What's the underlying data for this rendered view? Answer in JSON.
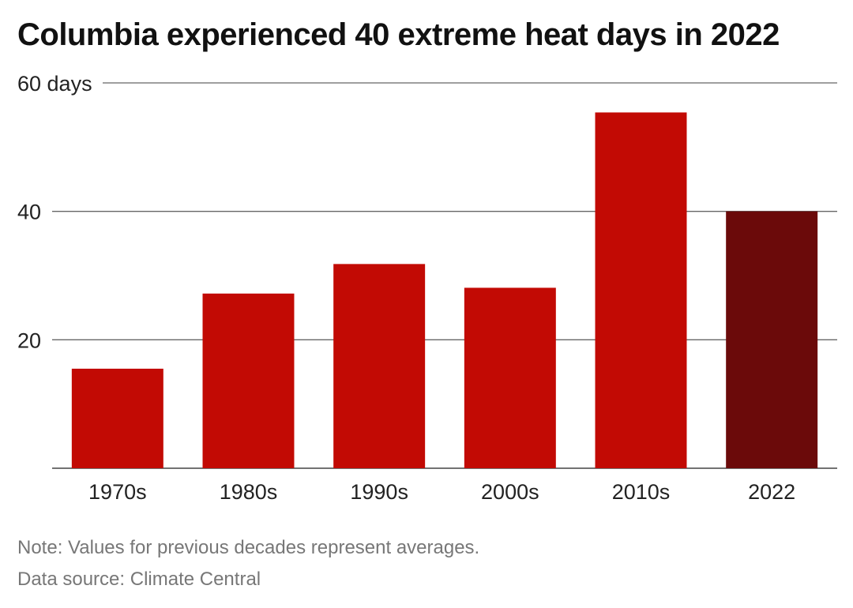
{
  "chart_data": {
    "type": "bar",
    "title": "Columbia experienced 40 extreme heat days in 2022",
    "categories": [
      "1970s",
      "1980s",
      "1990s",
      "2000s",
      "2010s",
      "2022"
    ],
    "values": [
      15.5,
      27.2,
      31.8,
      28.1,
      55.4,
      40
    ],
    "ylim": [
      0,
      60
    ],
    "yticks": [
      20,
      40,
      60
    ],
    "ytick_labels": [
      "20",
      "40",
      "60 days"
    ],
    "xlabel": "",
    "ylabel": "",
    "grid": true,
    "bar_color": "#c20a04",
    "highlight_category": "2022",
    "highlight_color": "#6b0a0a",
    "note": "Note: Values for previous decades represent averages.",
    "source": "Data source: Climate Central"
  }
}
